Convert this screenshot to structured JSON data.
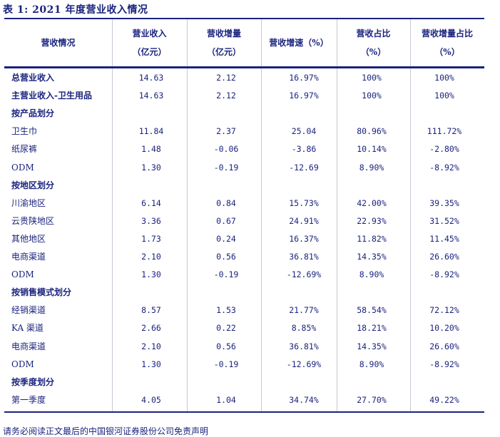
{
  "title": "表 1: 2021 年度营业收入情况",
  "headers": [
    {
      "line1": "营收情况",
      "line2": ""
    },
    {
      "line1": "营业收入",
      "line2": "（亿元）"
    },
    {
      "line1": "营收增量",
      "line2": "（亿元）"
    },
    {
      "line1": "营收增速（%）",
      "line2": ""
    },
    {
      "line1": "营收占比",
      "line2": "（%）"
    },
    {
      "line1": "营收增量占比",
      "line2": "（%）"
    }
  ],
  "rows": [
    {
      "label": "总营业收入",
      "bold": true,
      "values": [
        "14.63",
        "2.12",
        "16.97%",
        "100%",
        "100%"
      ]
    },
    {
      "label": "主营业收入-卫生用品",
      "bold": true,
      "values": [
        "14.63",
        "2.12",
        "16.97%",
        "100%",
        "100%"
      ]
    },
    {
      "label": "按产品划分",
      "bold": true,
      "values": [
        "",
        "",
        "",
        "",
        ""
      ]
    },
    {
      "label": "卫生巾",
      "bold": false,
      "values": [
        "11.84",
        "2.37",
        "25.04",
        "80.96%",
        "111.72%"
      ]
    },
    {
      "label": "纸尿裤",
      "bold": false,
      "values": [
        "1.48",
        "-0.06",
        "-3.86",
        "10.14%",
        "-2.80%"
      ]
    },
    {
      "label": "ODM",
      "bold": false,
      "values": [
        "1.30",
        "-0.19",
        "-12.69",
        "8.90%",
        "-8.92%"
      ]
    },
    {
      "label": "按地区划分",
      "bold": true,
      "values": [
        "",
        "",
        "",
        "",
        ""
      ]
    },
    {
      "label": "川渝地区",
      "bold": false,
      "values": [
        "6.14",
        "0.84",
        "15.73%",
        "42.00%",
        "39.35%"
      ]
    },
    {
      "label": "云贵陕地区",
      "bold": false,
      "values": [
        "3.36",
        "0.67",
        "24.91%",
        "22.93%",
        "31.52%"
      ]
    },
    {
      "label": "其他地区",
      "bold": false,
      "values": [
        "1.73",
        "0.24",
        "16.37%",
        "11.82%",
        "11.45%"
      ]
    },
    {
      "label": "电商渠道",
      "bold": false,
      "values": [
        "2.10",
        "0.56",
        "36.81%",
        "14.35%",
        "26.60%"
      ]
    },
    {
      "label": "ODM",
      "bold": false,
      "values": [
        "1.30",
        "-0.19",
        "-12.69%",
        "8.90%",
        "-8.92%"
      ]
    },
    {
      "label": "按销售模式划分",
      "bold": true,
      "values": [
        "",
        "",
        "",
        "",
        ""
      ]
    },
    {
      "label": "经销渠道",
      "bold": false,
      "values": [
        "8.57",
        "1.53",
        "21.77%",
        "58.54%",
        "72.12%"
      ]
    },
    {
      "label": "KA 渠道",
      "bold": false,
      "values": [
        "2.66",
        "0.22",
        "8.85%",
        "18.21%",
        "10.20%"
      ]
    },
    {
      "label": "电商渠道",
      "bold": false,
      "values": [
        "2.10",
        "0.56",
        "36.81%",
        "14.35%",
        "26.60%"
      ]
    },
    {
      "label": "ODM",
      "bold": false,
      "values": [
        "1.30",
        "-0.19",
        "-12.69%",
        "8.90%",
        "-8.92%"
      ]
    },
    {
      "label": "按季度划分",
      "bold": true,
      "values": [
        "",
        "",
        "",
        "",
        ""
      ]
    },
    {
      "label": "第一季度",
      "bold": false,
      "values": [
        "4.05",
        "1.04",
        "34.74%",
        "27.70%",
        "49.22%"
      ]
    }
  ],
  "footer": "请务必阅读正文最后的中国银河证券股份公司免责声明"
}
